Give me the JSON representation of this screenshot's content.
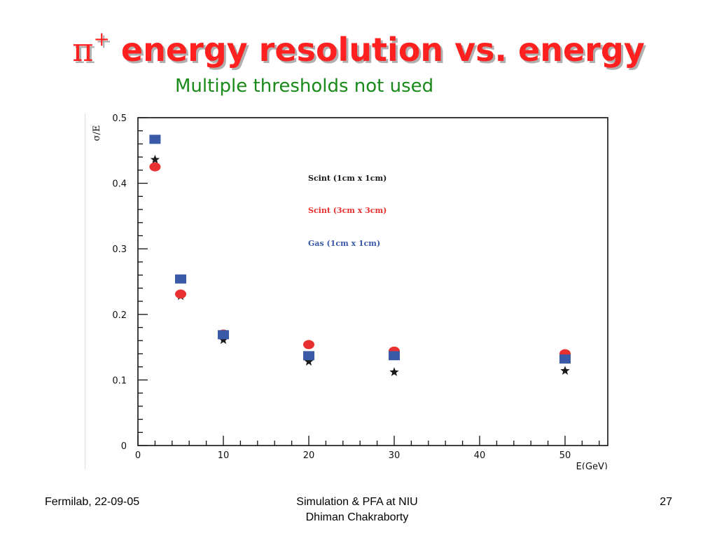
{
  "slide": {
    "title_symbol": "π",
    "title_superscript": "+",
    "title_text": " energy resolution vs. energy",
    "subtitle": "Multiple thresholds not used"
  },
  "footer": {
    "left": "Fermilab, 22-09-05",
    "center_line1": "Simulation & PFA at NIU",
    "center_line2": "Dhiman Chakraborty",
    "page_number": "27"
  },
  "colors": {
    "title": "#ff2020",
    "subtitle": "#1a8a1a",
    "series_black": "#1a1a1a",
    "series_red": "#e83030",
    "series_blue": "#3a5aa8"
  },
  "chart_data": {
    "type": "scatter",
    "title": "",
    "xlabel": "E(GeV)",
    "ylabel": "σ/E",
    "xlim": [
      0,
      55
    ],
    "ylim": [
      0,
      0.5
    ],
    "x_ticks": [
      0,
      10,
      20,
      30,
      40,
      50
    ],
    "y_ticks": [
      0,
      0.1,
      0.2,
      0.3,
      0.4,
      0.5
    ],
    "x_tick_labels": [
      "0",
      "10",
      "20",
      "30",
      "40",
      "50"
    ],
    "y_tick_labels": [
      "0",
      "0.1",
      "0.2",
      "0.3",
      "0.4",
      "0.5"
    ],
    "grid": false,
    "legend_position": "center",
    "series": [
      {
        "name": "Scint (1cm x 1cm)",
        "marker": "star",
        "color": "#1a1a1a",
        "x": [
          2,
          5,
          10,
          20,
          30,
          50
        ],
        "y": [
          0.436,
          0.228,
          0.161,
          0.128,
          0.112,
          0.114
        ]
      },
      {
        "name": "Scint (3cm x 3cm)",
        "marker": "circle",
        "color": "#e83030",
        "x": [
          2,
          5,
          10,
          20,
          30,
          50
        ],
        "y": [
          0.425,
          0.231,
          0.17,
          0.154,
          0.144,
          0.14
        ]
      },
      {
        "name": "Gas (1cm x 1cm)",
        "marker": "square",
        "color": "#3a5aa8",
        "x": [
          2,
          5,
          10,
          20,
          30,
          50
        ],
        "y": [
          0.467,
          0.254,
          0.169,
          0.137,
          0.137,
          0.132
        ]
      }
    ]
  }
}
